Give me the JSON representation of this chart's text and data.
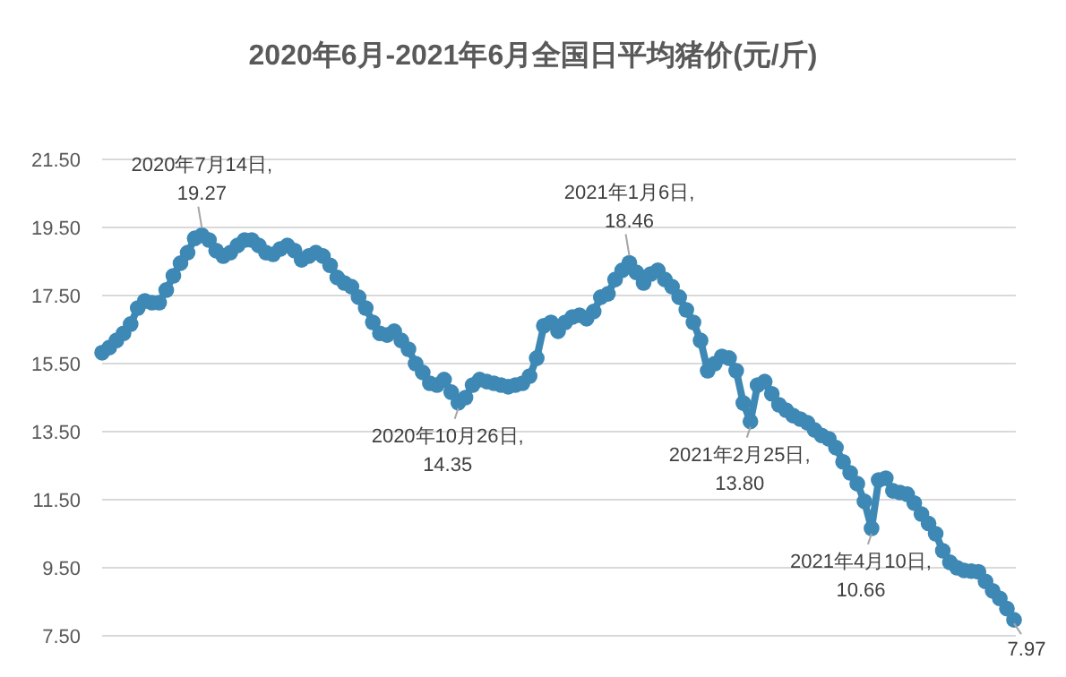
{
  "chart_data": {
    "type": "line",
    "title": "2020年6月-2021年6月全国日平均猪价(元/斤)",
    "categories": [
      null,
      null,
      null,
      null,
      null,
      null,
      null,
      null,
      null,
      null,
      null,
      null,
      null,
      null,
      null,
      null,
      null,
      null,
      null,
      null,
      null,
      null,
      null,
      null,
      null,
      null,
      null,
      null,
      null,
      null,
      null,
      null,
      null,
      null,
      null,
      null,
      null,
      null,
      null,
      null,
      null,
      null,
      null,
      null,
      null,
      null,
      null,
      null,
      null,
      null,
      null,
      null,
      null,
      null,
      null,
      null,
      null,
      null,
      null,
      null,
      null,
      null,
      null,
      null,
      null,
      null,
      null,
      null,
      null,
      null,
      null,
      null,
      null,
      null,
      null,
      null,
      null,
      null,
      null,
      null,
      null,
      null,
      null,
      null,
      null,
      null,
      null,
      null,
      null,
      null,
      null,
      null,
      null,
      null,
      null,
      null,
      null,
      null,
      null,
      null,
      null,
      null,
      null,
      null,
      null,
      null,
      null,
      null,
      null,
      null,
      null,
      null,
      null,
      null,
      null,
      null,
      null,
      null,
      null,
      null,
      null,
      null,
      null,
      null,
      null,
      null,
      null,
      null,
      null
    ],
    "ylim": [
      7.5,
      21.5
    ],
    "yticks": [
      {
        "value": 7.5,
        "label": "7.50"
      },
      {
        "value": 9.5,
        "label": "9.50"
      },
      {
        "value": 11.5,
        "label": "11.50"
      },
      {
        "value": 13.5,
        "label": "13.50"
      },
      {
        "value": 15.5,
        "label": "15.50"
      },
      {
        "value": 17.5,
        "label": "17.50"
      },
      {
        "value": 19.5,
        "label": "19.50"
      },
      {
        "value": 21.5,
        "label": "21.50"
      }
    ],
    "tick_labels": "y",
    "grid": "y",
    "marker": "circle",
    "series": [
      {
        "color": "#3d88b4",
        "values": [
          15.82,
          15.97,
          16.18,
          16.39,
          16.66,
          17.13,
          17.34,
          17.29,
          17.29,
          17.66,
          18.08,
          18.45,
          18.76,
          19.18,
          19.27,
          19.13,
          18.82,
          18.66,
          18.76,
          18.97,
          19.13,
          19.13,
          18.97,
          18.76,
          18.71,
          18.87,
          18.97,
          18.82,
          18.55,
          18.66,
          18.76,
          18.66,
          18.39,
          18.03,
          17.87,
          17.76,
          17.45,
          17.13,
          16.71,
          16.39,
          16.34,
          16.45,
          16.18,
          15.92,
          15.5,
          15.24,
          14.92,
          14.87,
          15.03,
          14.66,
          14.35,
          14.5,
          14.87,
          15.03,
          14.97,
          14.92,
          14.87,
          14.82,
          14.87,
          14.92,
          15.13,
          15.66,
          16.61,
          16.71,
          16.45,
          16.71,
          16.87,
          16.92,
          16.82,
          17.03,
          17.45,
          17.55,
          17.97,
          18.24,
          18.46,
          18.18,
          17.87,
          18.13,
          18.24,
          17.97,
          17.76,
          17.45,
          17.08,
          16.71,
          16.18,
          15.29,
          15.5,
          15.71,
          15.66,
          15.29,
          14.34,
          13.8,
          14.87,
          14.97,
          14.61,
          14.29,
          14.13,
          13.97,
          13.87,
          13.76,
          13.55,
          13.39,
          13.29,
          13.03,
          12.61,
          12.29,
          11.97,
          11.45,
          10.66,
          12.08,
          12.13,
          11.76,
          11.71,
          11.66,
          11.4,
          11.08,
          10.8,
          10.5,
          10.0,
          9.66,
          9.5,
          9.42,
          9.4,
          9.38,
          9.1,
          8.82,
          8.6,
          8.3,
          7.97
        ]
      }
    ],
    "annotations": [
      {
        "text": "2020年7月14日,\n19.27",
        "y": 19.27
      },
      {
        "text": "2020年10月26日,\n14.35",
        "y": 14.35
      },
      {
        "text": "2021年1月6日,\n18.46",
        "y": 18.46
      },
      {
        "text": "2021年2月25日,\n13.80",
        "y": 13.8
      },
      {
        "text": "2021年4月10日,\n10.66",
        "y": 10.66
      },
      {
        "text": "7.97",
        "y": 7.97
      }
    ]
  }
}
